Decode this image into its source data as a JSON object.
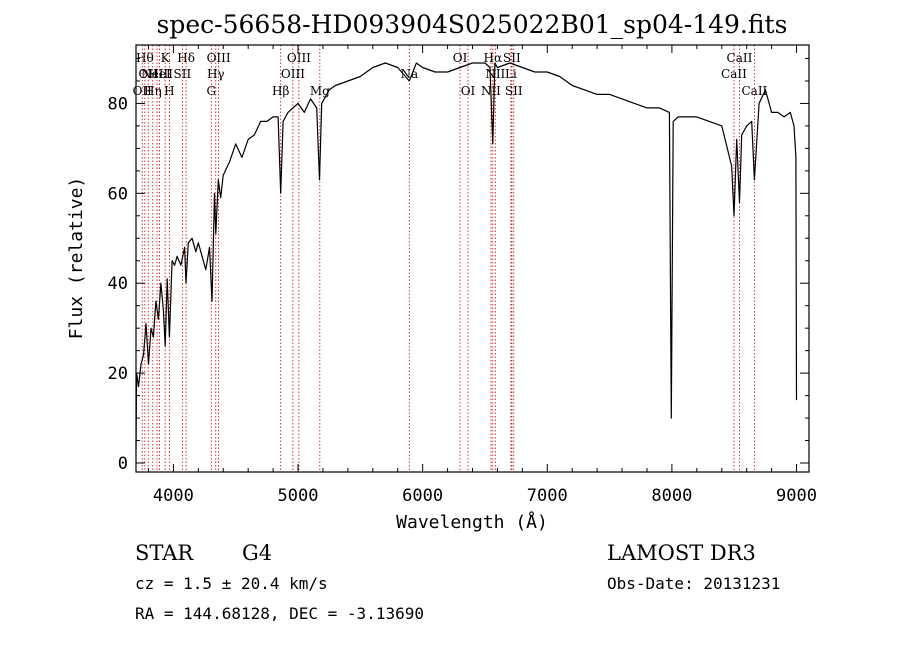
{
  "chart_data": {
    "type": "line",
    "title": "spec-56658-HD093904S025022B01_sp04-149.fits",
    "xlabel": "Wavelength (Å)",
    "ylabel": "Flux (relative)",
    "xlim": [
      3700,
      9100
    ],
    "ylim": [
      -2,
      93
    ],
    "xticks": [
      4000,
      5000,
      6000,
      7000,
      8000,
      9000
    ],
    "yticks": [
      0,
      20,
      40,
      60,
      80
    ],
    "series": [
      {
        "name": "flux",
        "x": [
          3700,
          3705,
          3720,
          3740,
          3760,
          3780,
          3800,
          3820,
          3840,
          3860,
          3880,
          3900,
          3920,
          3934,
          3950,
          3968,
          3990,
          4010,
          4030,
          4060,
          4090,
          4101,
          4120,
          4150,
          4180,
          4200,
          4230,
          4260,
          4290,
          4310,
          4330,
          4340,
          4360,
          4380,
          4400,
          4450,
          4500,
          4550,
          4600,
          4650,
          4700,
          4750,
          4800,
          4840,
          4861,
          4880,
          4920,
          4960,
          5000,
          5050,
          5100,
          5150,
          5172,
          5190,
          5250,
          5300,
          5400,
          5500,
          5600,
          5700,
          5800,
          5893,
          5950,
          6000,
          6100,
          6200,
          6300,
          6400,
          6500,
          6540,
          6563,
          6580,
          6600,
          6700,
          6800,
          6900,
          7000,
          7100,
          7200,
          7300,
          7400,
          7500,
          7600,
          7700,
          7800,
          7900,
          7980,
          7995,
          8010,
          8050,
          8100,
          8200,
          8300,
          8400,
          8480,
          8498,
          8520,
          8542,
          8560,
          8600,
          8640,
          8662,
          8700,
          8750,
          8800,
          8850,
          8900,
          8950,
          8980,
          8995,
          9000
        ],
        "values": [
          3,
          20,
          17,
          22,
          24,
          31,
          22,
          30,
          28,
          36,
          32,
          40,
          34,
          26,
          41,
          28,
          45,
          44,
          46,
          44,
          48,
          40,
          49,
          50,
          47,
          49,
          46,
          43,
          48,
          36,
          60,
          51,
          63,
          59,
          64,
          67,
          71,
          68,
          72,
          73,
          76,
          76,
          77,
          77,
          60,
          76,
          78,
          79,
          80,
          78,
          81,
          79,
          63,
          80,
          83,
          84,
          85,
          86,
          88,
          89,
          88,
          85,
          89,
          88,
          87,
          87,
          88,
          89,
          89,
          88,
          71,
          89,
          88,
          89,
          88,
          87,
          87,
          86,
          84,
          83,
          82,
          82,
          81,
          80,
          79,
          79,
          78,
          10,
          76,
          77,
          77,
          77,
          76,
          75,
          66,
          55,
          72,
          58,
          73,
          75,
          76,
          63,
          80,
          83,
          78,
          78,
          77,
          78,
          75,
          68,
          14
        ]
      }
    ],
    "lines": [
      {
        "wave": 3750,
        "label": "OII",
        "row": 2
      },
      {
        "wave": 3771,
        "label": "Hθ",
        "row": 0
      },
      {
        "wave": 3798,
        "label": "OII",
        "row": 1
      },
      {
        "wave": 3835,
        "label": "Hη",
        "row": 2
      },
      {
        "wave": 3869,
        "label": "NeIII",
        "row": 1
      },
      {
        "wave": 3889,
        "label": "HeI",
        "row": 1
      },
      {
        "wave": 3934,
        "label": "K",
        "row": 0
      },
      {
        "wave": 3968,
        "label": "H",
        "row": 2
      },
      {
        "wave": 4072,
        "label": "SII",
        "row": 1
      },
      {
        "wave": 4102,
        "label": "Hδ",
        "row": 0
      },
      {
        "wave": 4304,
        "label": "G",
        "row": 2
      },
      {
        "wave": 4340,
        "label": "Hγ",
        "row": 1
      },
      {
        "wave": 4363,
        "label": "OIII",
        "row": 0
      },
      {
        "wave": 4861,
        "label": "Hβ",
        "row": 2
      },
      {
        "wave": 4959,
        "label": "OIII",
        "row": 1
      },
      {
        "wave": 5007,
        "label": "OIII",
        "row": 0
      },
      {
        "wave": 5175,
        "label": "Mg",
        "row": 2
      },
      {
        "wave": 5893,
        "label": "Na",
        "row": 1
      },
      {
        "wave": 6300,
        "label": "OI",
        "row": 0
      },
      {
        "wave": 6364,
        "label": "OI",
        "row": 2
      },
      {
        "wave": 6548,
        "label": "NII",
        "row": 2
      },
      {
        "wave": 6563,
        "label": "Hα",
        "row": 0
      },
      {
        "wave": 6583,
        "label": "NII",
        "row": 1
      },
      {
        "wave": 6716,
        "label": "SII",
        "row": 0
      },
      {
        "wave": 6731,
        "label": "SII",
        "row": 2
      },
      {
        "wave": 6708,
        "label": "Li",
        "row": 1
      },
      {
        "wave": 8498,
        "label": "CaII",
        "row": 1
      },
      {
        "wave": 8542,
        "label": "CaII",
        "row": 0
      },
      {
        "wave": 8662,
        "label": "CaII",
        "row": 2
      }
    ]
  },
  "info": {
    "class_label": "STAR",
    "subclass_label": "G4",
    "survey": "LAMOST DR3",
    "cz": "cz = 1.5 ± 20.4 km/s",
    "obs_date": "Obs-Date: 20131231",
    "coords": "RA = 144.68128, DEC =  -3.13690"
  },
  "colors": {
    "spectrum": "#000000",
    "line_marker": "#cc0000",
    "axis": "#000000"
  }
}
